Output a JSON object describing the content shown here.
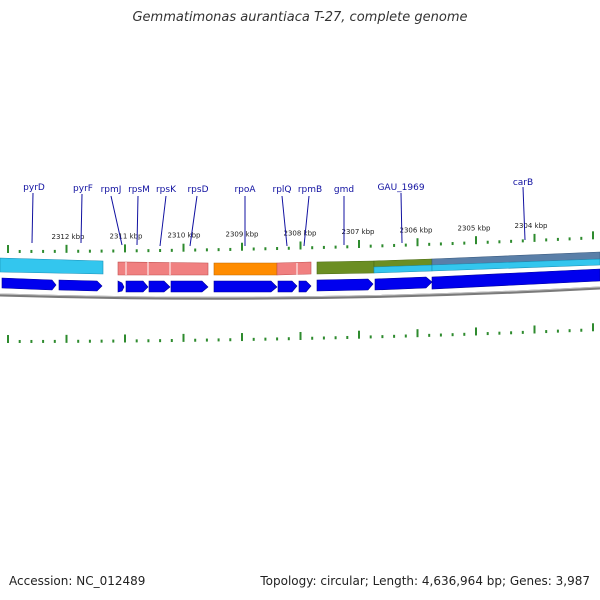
{
  "title": "Gemmatimonas aurantiaca T-27, complete genome",
  "footer": {
    "accession": "Accession: NC_012489",
    "summary": "Topology: circular; Length: 4,636,964 bp; Genes: 3,987"
  },
  "genome": {
    "kbp_ticks": [
      {
        "value": 2312,
        "label": "2312 kbp"
      },
      {
        "value": 2311,
        "label": "2311 kbp"
      },
      {
        "value": 2310,
        "label": "2310 kbp"
      },
      {
        "value": 2309,
        "label": "2309 kbp"
      },
      {
        "value": 2308,
        "label": "2308 kbp"
      },
      {
        "value": 2307,
        "label": "2307 kbp"
      },
      {
        "value": 2306,
        "label": "2306 kbp"
      },
      {
        "value": 2305,
        "label": "2305 kbp"
      },
      {
        "value": 2304,
        "label": "2304 kbp"
      }
    ],
    "gene_labels": [
      "pyrD",
      "pyrF",
      "rpmJ",
      "rpsM",
      "rpsK",
      "rpsD",
      "rpoA",
      "rplQ",
      "rpmB",
      "gmd",
      "GAU_1969",
      "carB"
    ],
    "colors": {
      "cds": "#0000ee",
      "cyan": "#33c6ee",
      "pink": "#f08080",
      "orange": "#ff8c00",
      "olive": "#6b8e23",
      "tick": "#2e8b2e",
      "label": "#1010a0",
      "backbone": "#888888"
    }
  }
}
